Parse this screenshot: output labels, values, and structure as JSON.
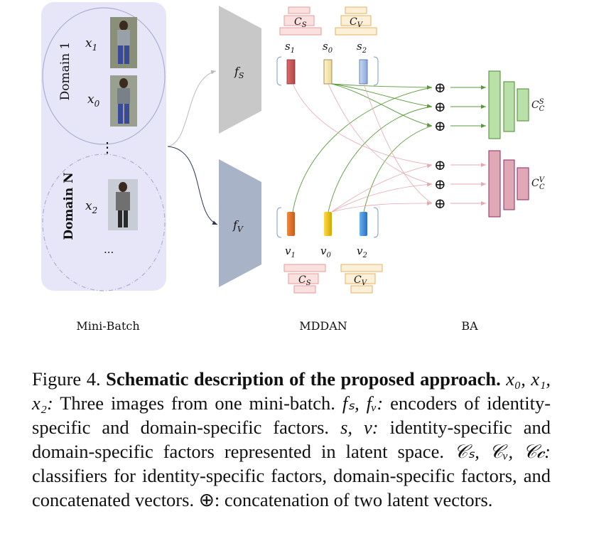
{
  "figure": {
    "domain1_label": "Domain 1",
    "domainN_label": "Domain N",
    "x1": "x",
    "x1_sub": "1",
    "x0": "x",
    "x0_sub": "0",
    "x2": "x",
    "x2_sub": "2",
    "vdots": "⋮",
    "ellipsis": "...",
    "fs_label": "f",
    "fs_sub": "S",
    "fv_label": "f",
    "fv_sub": "V",
    "cs_label": "C",
    "cs_sub": "S",
    "cv_label": "C",
    "cv_sub": "V",
    "s1": "s",
    "s1_sub": "1",
    "s0": "s",
    "s0_sub": "0",
    "s2": "s",
    "s2_sub": "2",
    "v1": "v",
    "v1_sub": "1",
    "v0": "v",
    "v0_sub": "0",
    "v2": "v",
    "v2_sub": "2",
    "oplus": "⊕",
    "ccs_label": "C",
    "ccs_sub": "C",
    "ccs_sup": "S",
    "ccv_label": "C",
    "ccv_sub": "C",
    "ccv_sup": "V",
    "minibatch_label": "Mini-Batch",
    "mddan_label": "MDDAN",
    "ba_label": "BA",
    "colors": {
      "panel_bg": "#e6e6f8",
      "encoder_s": "#c8c8c8",
      "encoder_v": "#a9b3c8",
      "green": "#5a9a3a",
      "pink": "#e8a8b0",
      "green_fill": "#b8e0a8",
      "pink_fill": "#e0a8b4"
    }
  },
  "caption": {
    "fig_num": "Figure 4.",
    "fig_title": "Schematic description of the proposed approach.",
    "p1_math": "x₀, x₁, x₂:",
    "p1_text": "Three images from one mini-batch.",
    "p2_math": "fₛ, fᵥ:",
    "p2_text": "encoders of identity-specific and domain-specific factors.",
    "p3_math": "s, v:",
    "p3_text": "identity-specific and domain-specific factors represented in latent space.",
    "p4_math": "𝒞ₛ, 𝒞ᵥ, 𝒞𝒸:",
    "p4_text": "classifiers for identity-specific factors, domain-specific factors, and concatenated vectors.",
    "p5_math": "⊕:",
    "p5_text": "concatenation of two latent vectors."
  }
}
